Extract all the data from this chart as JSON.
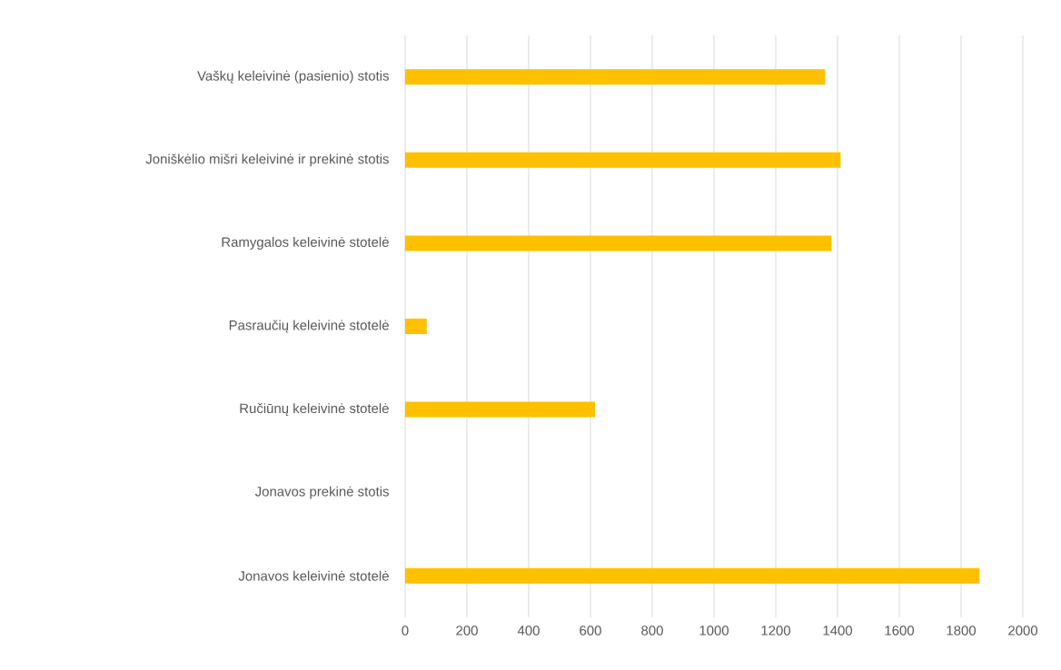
{
  "chart_data": {
    "type": "bar",
    "orientation": "horizontal",
    "categories": [
      "Vaškų keleivinė (pasienio) stotis",
      "Joniškėlio mišri keleivinė ir prekinė stotis",
      "Ramygalos keleivinė stotelė",
      "Pasraučių keleivinė stotelė",
      "Ručiūnų keleivinė stotelė",
      "Jonavos prekinė stotis",
      "Jonavos keleivinė stotelė"
    ],
    "values": [
      1360,
      1410,
      1380,
      70,
      615,
      0,
      1860
    ],
    "color": "#ffc000",
    "xlim": [
      0,
      2000
    ],
    "xticks": [
      0,
      200,
      400,
      600,
      800,
      1000,
      1200,
      1400,
      1600,
      1800,
      2000
    ],
    "grid": "x"
  }
}
